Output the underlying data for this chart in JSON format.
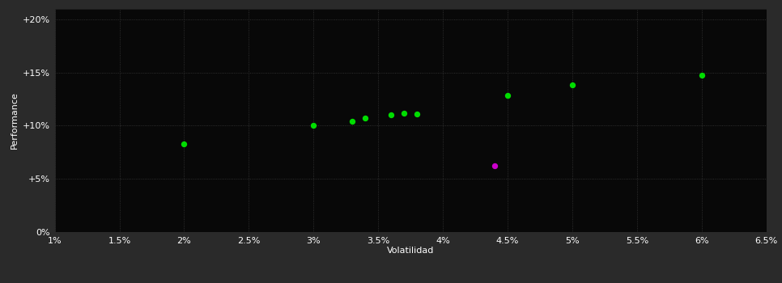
{
  "background_color": "#2a2a2a",
  "plot_bg_color": "#080808",
  "text_color": "#ffffff",
  "xlabel": "Volatilidad",
  "ylabel": "Performance",
  "xlim": [
    0.01,
    0.065
  ],
  "ylim": [
    0.0,
    0.21
  ],
  "xtick_vals": [
    0.01,
    0.015,
    0.02,
    0.025,
    0.03,
    0.035,
    0.04,
    0.045,
    0.05,
    0.055,
    0.06,
    0.065
  ],
  "xtick_labels": [
    "1%",
    "1.5%",
    "2%",
    "2.5%",
    "3%",
    "3.5%",
    "4%",
    "4.5%",
    "5%",
    "5.5%",
    "6%",
    "6.5%"
  ],
  "ytick_vals": [
    0.0,
    0.05,
    0.1,
    0.15,
    0.2
  ],
  "ytick_labels": [
    "0%",
    "+5%",
    "+10%",
    "+15%",
    "+20%"
  ],
  "green_points": [
    [
      0.02,
      0.083
    ],
    [
      0.03,
      0.1
    ],
    [
      0.033,
      0.104
    ],
    [
      0.034,
      0.107
    ],
    [
      0.036,
      0.11
    ],
    [
      0.037,
      0.112
    ],
    [
      0.038,
      0.111
    ],
    [
      0.045,
      0.128
    ],
    [
      0.05,
      0.138
    ],
    [
      0.06,
      0.147
    ]
  ],
  "magenta_points": [
    [
      0.044,
      0.062
    ]
  ],
  "green_color": "#00dd00",
  "magenta_color": "#cc00cc",
  "marker_size": 28,
  "grid_color": "#3a3a3a",
  "label_fontsize": 8,
  "axis_label_fontsize": 8
}
